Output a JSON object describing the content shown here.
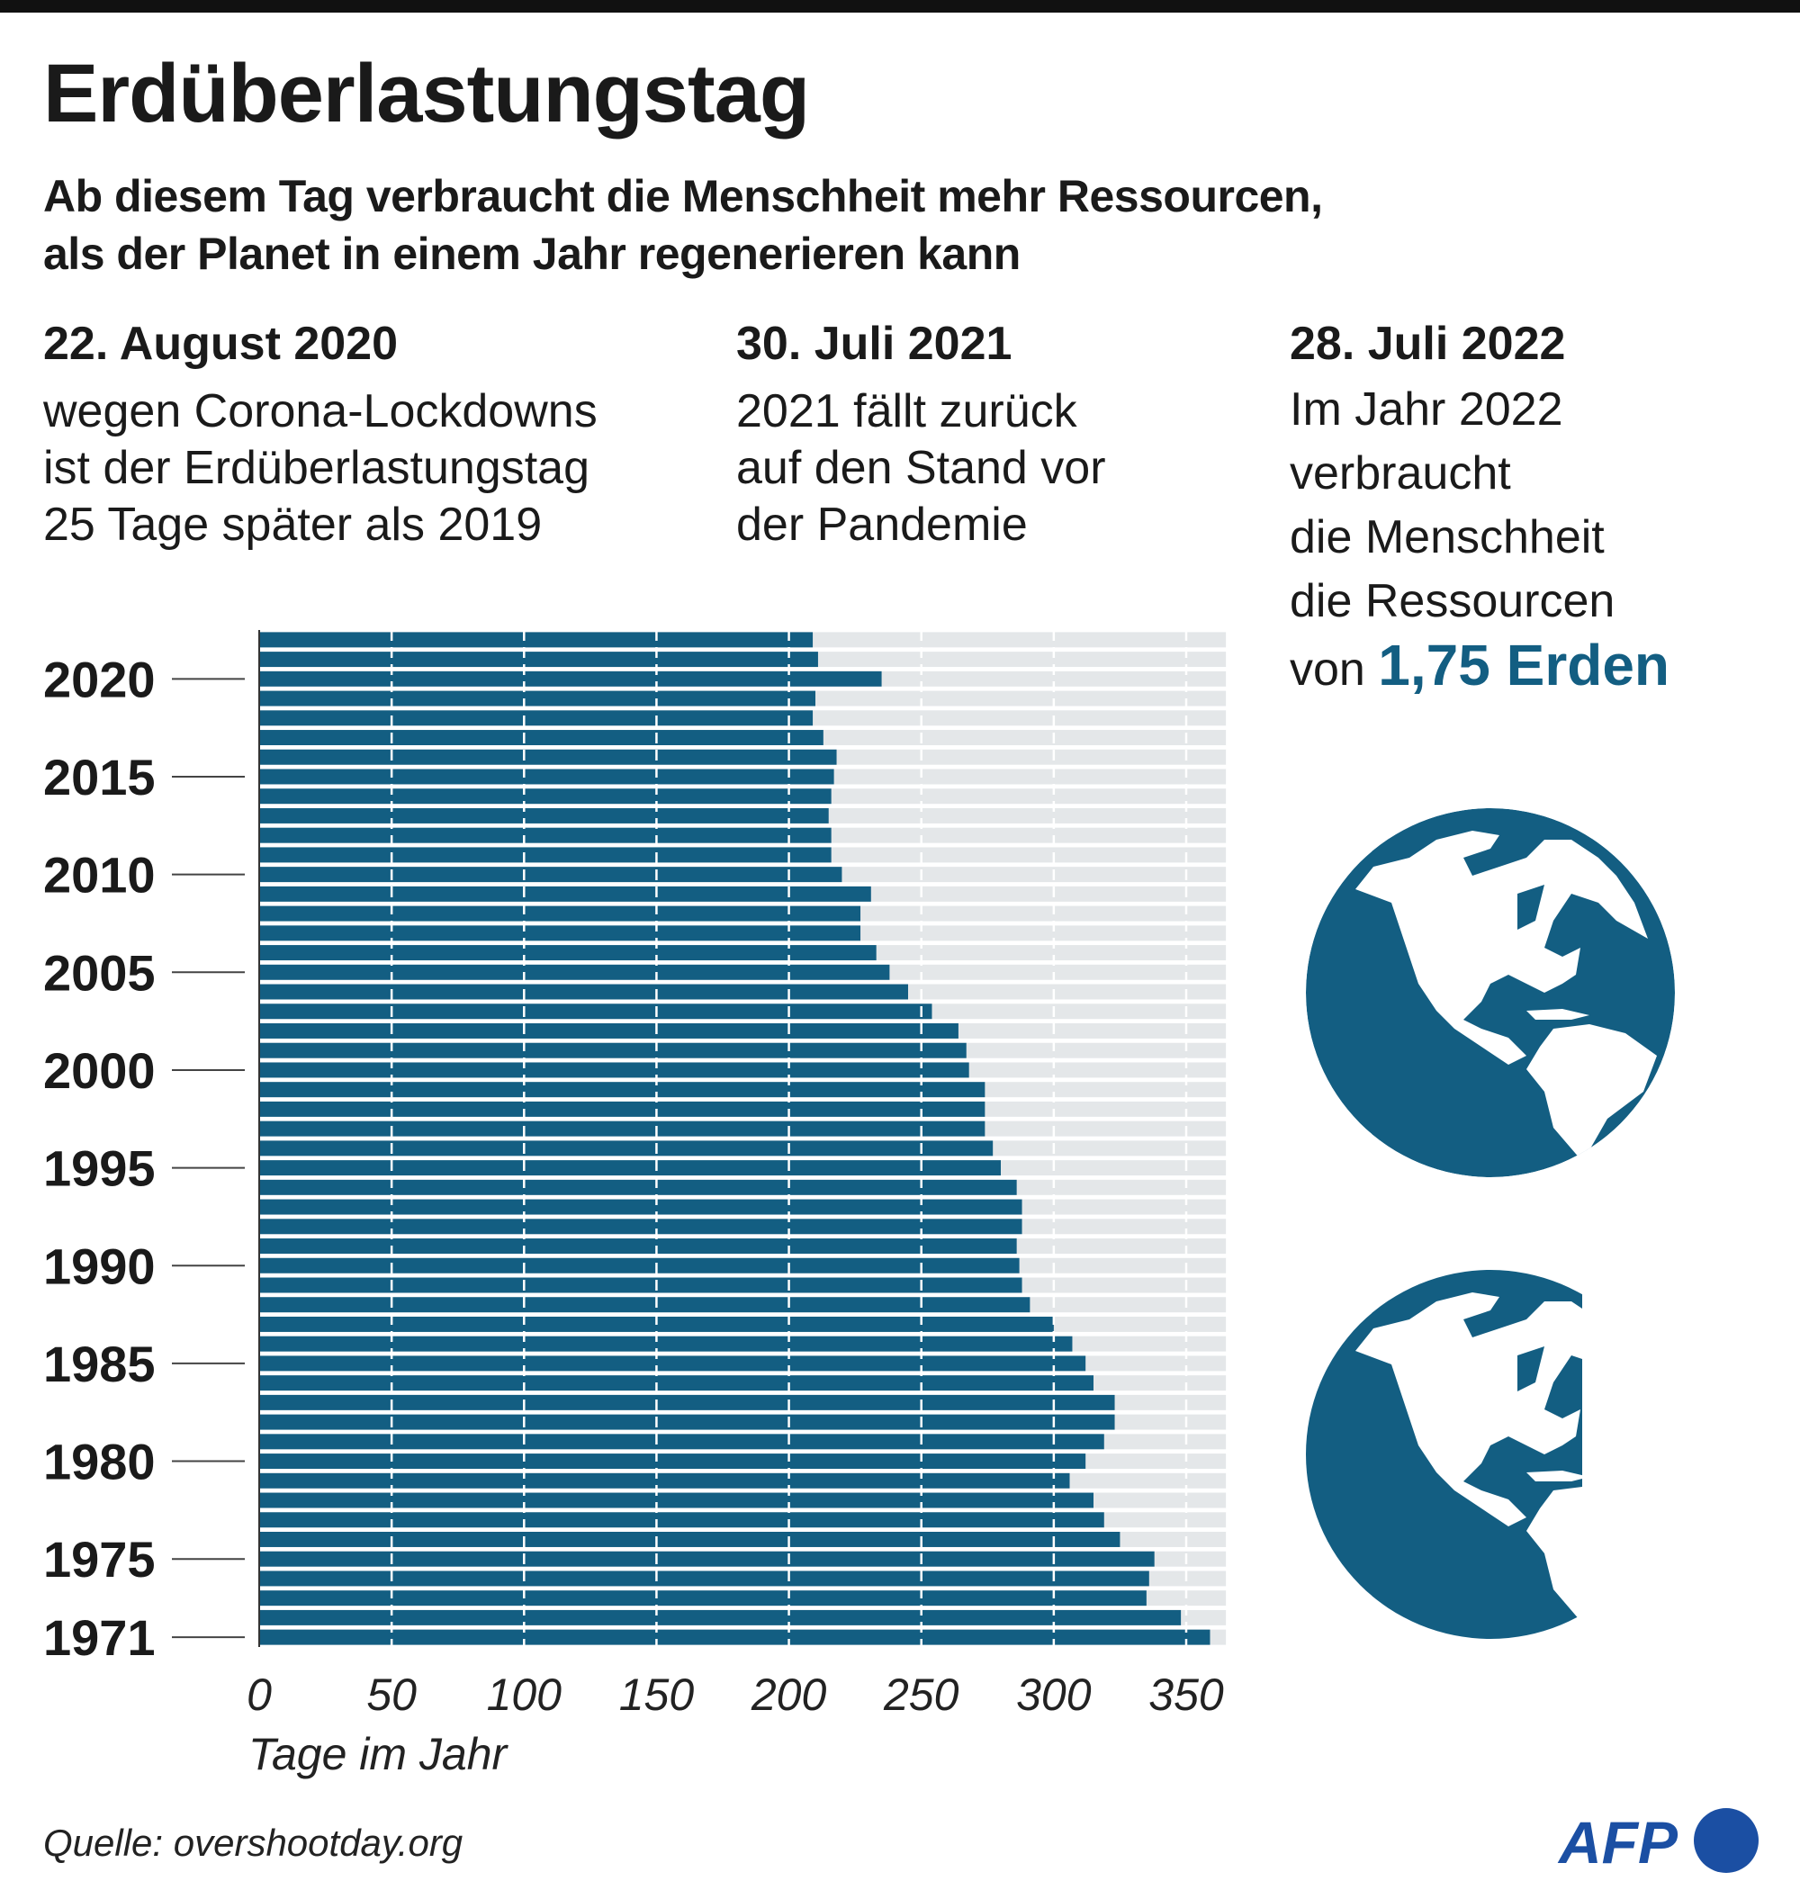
{
  "title": "Erdüberlastungstag",
  "subtitle": [
    "Ab diesem Tag verbraucht die Menschheit mehr Ressourcen,",
    "als der Planet in einem Jahr regenerieren kann"
  ],
  "annotations": [
    {
      "heading": "22. August 2020",
      "lines": [
        "wegen Corona-Lockdowns",
        "ist der Erdüberlastungstag",
        "25 Tage später als 2019"
      ]
    },
    {
      "heading": "30. Juli 2021",
      "lines": [
        "2021 fällt zurück",
        "auf den Stand vor",
        "der Pandemie"
      ]
    },
    {
      "heading": "28. Juli 2022",
      "lines": [
        "Im Jahr 2022",
        "verbraucht",
        "die Menschheit",
        "die Ressourcen"
      ],
      "last_prefix": "von ",
      "highlight": "1,75 Erden"
    }
  ],
  "colors": {
    "bar": "#135e82",
    "background_bar": "#e4e7e9",
    "highlight": "#135e82",
    "globe": "#135e82",
    "logo": "#1b4fa3"
  },
  "globe_icons": [
    "globe-icon",
    "partial-globe-icon"
  ],
  "chart_data": {
    "type": "bar",
    "orientation": "horizontal",
    "xlabel": "Tage im Jahr",
    "xlim": [
      0,
      365
    ],
    "xticks": [
      0,
      50,
      100,
      150,
      200,
      250,
      300,
      350
    ],
    "ytick_labels": [
      "2020",
      "2015",
      "2010",
      "2005",
      "2000",
      "1995",
      "1990",
      "1985",
      "1980",
      "1975",
      "1971"
    ],
    "grid": "vertical dashed",
    "categories": [
      2022,
      2021,
      2020,
      2019,
      2018,
      2017,
      2016,
      2015,
      2014,
      2013,
      2012,
      2011,
      2010,
      2009,
      2008,
      2007,
      2006,
      2005,
      2004,
      2003,
      2002,
      2001,
      2000,
      1999,
      1998,
      1997,
      1996,
      1995,
      1994,
      1993,
      1992,
      1991,
      1990,
      1989,
      1988,
      1987,
      1986,
      1985,
      1984,
      1983,
      1982,
      1981,
      1980,
      1979,
      1978,
      1977,
      1976,
      1975,
      1974,
      1973,
      1972,
      1971
    ],
    "values": [
      209,
      211,
      235,
      210,
      209,
      213,
      218,
      217,
      216,
      215,
      216,
      216,
      220,
      231,
      227,
      227,
      233,
      238,
      245,
      254,
      264,
      267,
      268,
      274,
      274,
      274,
      277,
      280,
      286,
      288,
      288,
      286,
      287,
      288,
      291,
      300,
      307,
      312,
      315,
      323,
      323,
      319,
      312,
      306,
      315,
      319,
      325,
      338,
      336,
      335,
      348,
      359
    ]
  },
  "source": "Quelle: overshootday.org",
  "logo": "AFP"
}
